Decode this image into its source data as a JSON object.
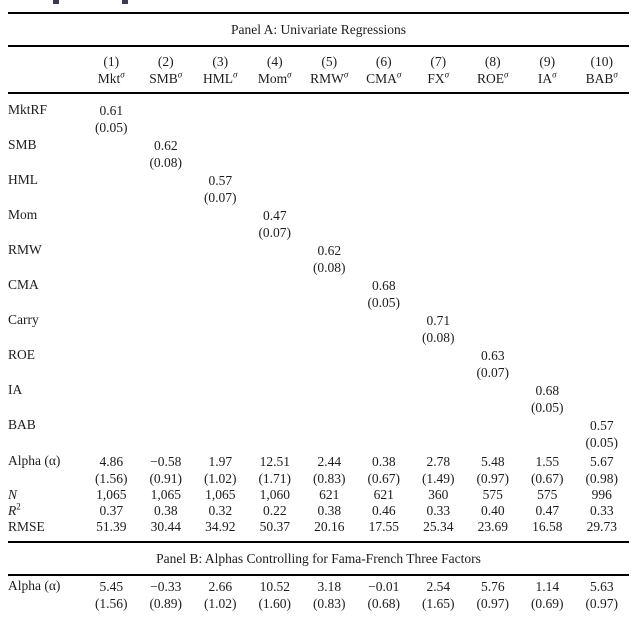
{
  "panels": {
    "a_title": "Panel A: Univariate Regressions",
    "b_title": "Panel B: Alphas Controlling for Fama-French Three Factors"
  },
  "columns": [
    {
      "num": "(1)",
      "name": "Mkt",
      "sup": "σ"
    },
    {
      "num": "(2)",
      "name": "SMB",
      "sup": "σ"
    },
    {
      "num": "(3)",
      "name": "HML",
      "sup": "σ"
    },
    {
      "num": "(4)",
      "name": "Mom",
      "sup": "σ"
    },
    {
      "num": "(5)",
      "name": "RMW",
      "sup": "σ"
    },
    {
      "num": "(6)",
      "name": "CMA",
      "sup": "σ"
    },
    {
      "num": "(7)",
      "name": "FX",
      "sup": "σ"
    },
    {
      "num": "(8)",
      "name": "ROE",
      "sup": "σ"
    },
    {
      "num": "(9)",
      "name": "IA",
      "sup": "σ"
    },
    {
      "num": "(10)",
      "name": "BAB",
      "sup": "σ"
    }
  ],
  "panelA": {
    "factors": [
      {
        "label": "MktRF",
        "est": "0.61",
        "se": "(0.05)"
      },
      {
        "label": "SMB",
        "est": "0.62",
        "se": "(0.08)"
      },
      {
        "label": "HML",
        "est": "0.57",
        "se": "(0.07)"
      },
      {
        "label": "Mom",
        "est": "0.47",
        "se": "(0.07)"
      },
      {
        "label": "RMW",
        "est": "0.62",
        "se": "(0.08)"
      },
      {
        "label": "CMA",
        "est": "0.68",
        "se": "(0.05)"
      },
      {
        "label": "Carry",
        "est": "0.71",
        "se": "(0.08)"
      },
      {
        "label": "ROE",
        "est": "0.63",
        "se": "(0.07)"
      },
      {
        "label": "IA",
        "est": "0.68",
        "se": "(0.05)"
      },
      {
        "label": "BAB",
        "est": "0.57",
        "se": "(0.05)"
      }
    ],
    "alpha": {
      "label": "Alpha (α)",
      "est": [
        "4.86",
        "−0.58",
        "1.97",
        "12.51",
        "2.44",
        "0.38",
        "2.78",
        "5.48",
        "1.55",
        "5.67"
      ],
      "se": [
        "(1.56)",
        "(0.91)",
        "(1.02)",
        "(1.71)",
        "(0.83)",
        "(0.67)",
        "(1.49)",
        "(0.97)",
        "(0.67)",
        "(0.98)"
      ]
    },
    "n": {
      "label": "N",
      "values": [
        "1,065",
        "1,065",
        "1,065",
        "1,060",
        "621",
        "621",
        "360",
        "575",
        "575",
        "996"
      ]
    },
    "r2": {
      "label_main": "R",
      "label_sup": "2",
      "values": [
        "0.37",
        "0.38",
        "0.32",
        "0.22",
        "0.38",
        "0.46",
        "0.33",
        "0.40",
        "0.47",
        "0.33"
      ]
    },
    "rmse": {
      "label": "RMSE",
      "values": [
        "51.39",
        "30.44",
        "34.92",
        "50.37",
        "20.16",
        "17.55",
        "25.34",
        "23.69",
        "16.58",
        "29.73"
      ]
    }
  },
  "panelB": {
    "alpha": {
      "label": "Alpha (α)",
      "est": [
        "5.45",
        "−0.33",
        "2.66",
        "10.52",
        "3.18",
        "−0.01",
        "2.54",
        "5.76",
        "1.14",
        "5.63"
      ],
      "se": [
        "(1.56)",
        "(0.89)",
        "(1.02)",
        "(1.60)",
        "(0.83)",
        "(0.68)",
        "(1.65)",
        "(0.97)",
        "(0.69)",
        "(0.97)"
      ]
    }
  }
}
